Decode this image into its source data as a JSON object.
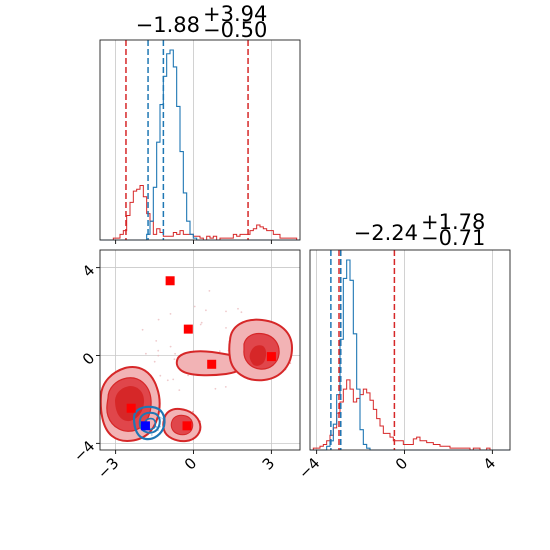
{
  "chart_data": {
    "type": "corner",
    "parameters": [
      "param_1",
      "param_2"
    ],
    "grid": true,
    "colors": {
      "series_a": "#1f77b4",
      "series_b": "#d62728",
      "marker_red": "#ff0000",
      "marker_blue": "#0000ff"
    },
    "titles": [
      {
        "median": "−1.88",
        "plus": "+3.94",
        "minus": "−0.50"
      },
      {
        "median": "−2.24",
        "plus": "+1.78",
        "minus": "−0.71"
      }
    ],
    "x_ticks": {
      "values": [
        -3,
        0,
        3
      ],
      "labels": [
        "−3",
        "0",
        "3"
      ]
    },
    "y_ticks": {
      "values": [
        4,
        0,
        -4
      ],
      "labels": [
        "4",
        "0",
        "−4"
      ]
    },
    "x2_ticks": {
      "values": [
        -4,
        0,
        4
      ],
      "labels": [
        "−4",
        "0",
        "4"
      ]
    },
    "ranges": {
      "p1": [
        -3.6,
        4.1
      ],
      "p2": [
        -4.3,
        4.8
      ]
    },
    "hist_p1": {
      "edges": [
        -3.6,
        4.1
      ],
      "series_b": [
        0,
        0,
        0,
        0,
        1,
        1,
        3,
        5,
        13,
        20,
        26,
        27,
        29,
        23,
        14,
        10,
        3,
        6,
        4,
        2,
        2,
        2,
        4,
        3,
        5,
        3,
        3,
        3,
        2,
        2,
        1,
        0,
        2,
        1,
        2,
        0,
        1,
        1,
        1,
        1,
        3,
        2,
        3,
        3,
        3,
        5,
        6,
        8,
        7,
        6,
        5,
        5,
        3,
        3,
        1,
        1,
        1,
        1,
        1,
        0
      ],
      "series_a": [
        0,
        0,
        0,
        0,
        0,
        0,
        0,
        0,
        0,
        0,
        0,
        0,
        0,
        0,
        3,
        10,
        28,
        52,
        72,
        87,
        99,
        101,
        92,
        71,
        47,
        25,
        10,
        3,
        1,
        0,
        0,
        0,
        0,
        0,
        0,
        0,
        0,
        0,
        0,
        0,
        0,
        0,
        0,
        0,
        0,
        0,
        0,
        0,
        0,
        0,
        0,
        0,
        0,
        0,
        0,
        0,
        0,
        0,
        0,
        0
      ],
      "lines_b": [
        -2.6,
        2.1
      ],
      "lines_a": [
        -1.75,
        -1.16
      ]
    },
    "hist_p2": {
      "edges": [
        -4.3,
        4.8
      ],
      "series_a": [
        0,
        0,
        0,
        0,
        0,
        2,
        5,
        14,
        30,
        60,
        93,
        103,
        92,
        63,
        33,
        11,
        3,
        1,
        0,
        0,
        0,
        0,
        0,
        0,
        0,
        0,
        0,
        0,
        0,
        0,
        0,
        0,
        0,
        0,
        0,
        0,
        0,
        0,
        0,
        0,
        0,
        0,
        0,
        0,
        0,
        0,
        0,
        0,
        0,
        0,
        0,
        0,
        0,
        0,
        0,
        0,
        0,
        0,
        0,
        0
      ],
      "series_b": [
        0,
        1,
        1,
        2,
        3,
        5,
        8,
        12,
        20,
        26,
        33,
        38,
        33,
        26,
        28,
        30,
        33,
        31,
        27,
        22,
        17,
        13,
        9,
        9,
        7,
        5,
        5,
        5,
        3,
        3,
        3,
        6,
        7,
        5,
        5,
        4,
        4,
        3,
        3,
        2,
        2,
        2,
        1,
        1,
        1,
        1,
        1,
        1,
        0,
        1,
        1,
        0,
        0,
        1,
        0,
        0,
        0,
        0,
        0,
        0
      ],
      "lines_b": [
        -2.9,
        -2.98,
        -0.46
      ],
      "lines_a": [
        -3.35,
        -2.9
      ]
    },
    "scatter_markers_red": [
      {
        "x": -0.9,
        "y": 3.4
      },
      {
        "x": -0.2,
        "y": 1.2
      },
      {
        "x": 0.7,
        "y": -0.4
      },
      {
        "x": 3.0,
        "y": -0.05
      },
      {
        "x": -2.4,
        "y": -2.4
      },
      {
        "x": -0.25,
        "y": -3.2
      }
    ],
    "scatter_marker_blue": {
      "x": -1.85,
      "y": -3.2
    }
  }
}
